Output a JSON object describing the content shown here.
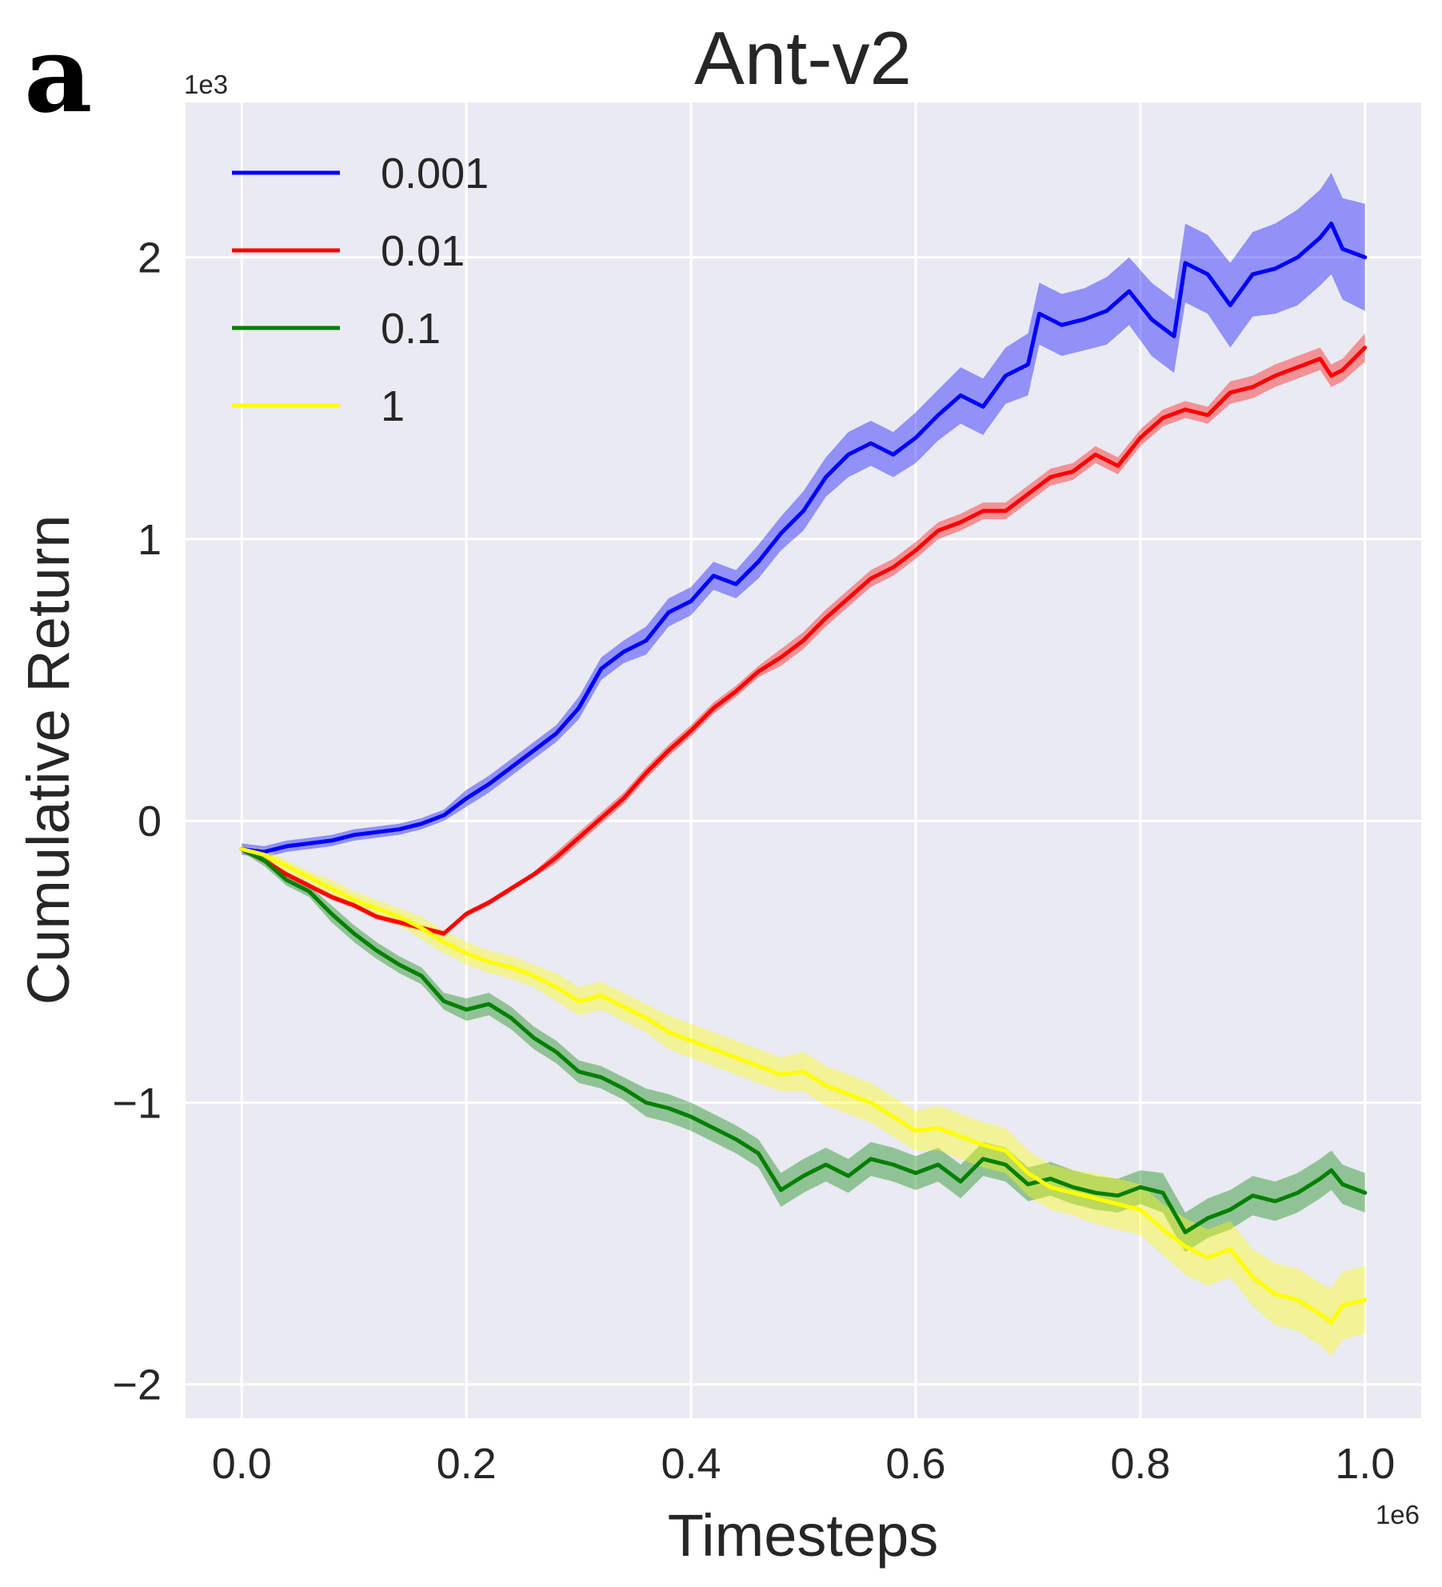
{
  "panel_letter": "a",
  "chart_data": {
    "type": "line",
    "title": "Ant-v2",
    "xlabel": "Timesteps",
    "ylabel": "Cumulative Return",
    "x_offset_label": "1e6",
    "y_offset_label": "1e3",
    "xlim": [
      -0.05,
      1.05
    ],
    "ylim": [
      -2.12,
      2.55
    ],
    "xticks": [
      0.0,
      0.2,
      0.4,
      0.6,
      0.8,
      1.0
    ],
    "xtick_labels": [
      "0.0",
      "0.2",
      "0.4",
      "0.6",
      "0.8",
      "1.0"
    ],
    "yticks": [
      -2,
      -1,
      0,
      1,
      2
    ],
    "ytick_labels": [
      "−2",
      "−1",
      "0",
      "1",
      "2"
    ],
    "grid": true,
    "legend_position": "top-left",
    "series": [
      {
        "name": "0.001",
        "color": "#0000ff",
        "points": [
          [
            0.0,
            -0.1
          ],
          [
            0.02,
            -0.11
          ],
          [
            0.04,
            -0.09
          ],
          [
            0.06,
            -0.08
          ],
          [
            0.08,
            -0.07
          ],
          [
            0.1,
            -0.05
          ],
          [
            0.12,
            -0.04
          ],
          [
            0.14,
            -0.03
          ],
          [
            0.16,
            -0.01
          ],
          [
            0.18,
            0.02
          ],
          [
            0.2,
            0.08
          ],
          [
            0.22,
            0.13
          ],
          [
            0.24,
            0.19
          ],
          [
            0.26,
            0.25
          ],
          [
            0.28,
            0.31
          ],
          [
            0.3,
            0.4
          ],
          [
            0.32,
            0.54
          ],
          [
            0.34,
            0.6
          ],
          [
            0.36,
            0.64
          ],
          [
            0.38,
            0.74
          ],
          [
            0.4,
            0.78
          ],
          [
            0.42,
            0.87
          ],
          [
            0.44,
            0.84
          ],
          [
            0.46,
            0.92
          ],
          [
            0.48,
            1.02
          ],
          [
            0.5,
            1.1
          ],
          [
            0.52,
            1.22
          ],
          [
            0.54,
            1.3
          ],
          [
            0.56,
            1.34
          ],
          [
            0.58,
            1.3
          ],
          [
            0.6,
            1.36
          ],
          [
            0.62,
            1.44
          ],
          [
            0.64,
            1.51
          ],
          [
            0.66,
            1.47
          ],
          [
            0.68,
            1.58
          ],
          [
            0.7,
            1.62
          ],
          [
            0.71,
            1.8
          ],
          [
            0.73,
            1.76
          ],
          [
            0.75,
            1.78
          ],
          [
            0.77,
            1.81
          ],
          [
            0.79,
            1.88
          ],
          [
            0.81,
            1.78
          ],
          [
            0.83,
            1.72
          ],
          [
            0.84,
            1.98
          ],
          [
            0.86,
            1.94
          ],
          [
            0.88,
            1.83
          ],
          [
            0.9,
            1.94
          ],
          [
            0.92,
            1.96
          ],
          [
            0.94,
            2.0
          ],
          [
            0.96,
            2.07
          ],
          [
            0.97,
            2.12
          ],
          [
            0.98,
            2.03
          ],
          [
            1.0,
            2.0
          ]
        ],
        "band": [
          0.02,
          0.02,
          0.02,
          0.02,
          0.02,
          0.02,
          0.02,
          0.02,
          0.02,
          0.02,
          0.03,
          0.03,
          0.03,
          0.03,
          0.03,
          0.04,
          0.04,
          0.04,
          0.05,
          0.05,
          0.05,
          0.05,
          0.05,
          0.06,
          0.06,
          0.07,
          0.07,
          0.08,
          0.08,
          0.08,
          0.09,
          0.09,
          0.1,
          0.1,
          0.1,
          0.11,
          0.11,
          0.11,
          0.11,
          0.12,
          0.12,
          0.13,
          0.13,
          0.14,
          0.14,
          0.15,
          0.15,
          0.16,
          0.17,
          0.17,
          0.18,
          0.18,
          0.19
        ]
      },
      {
        "name": "0.01",
        "color": "#ff0000",
        "points": [
          [
            0.0,
            -0.1
          ],
          [
            0.02,
            -0.14
          ],
          [
            0.04,
            -0.19
          ],
          [
            0.06,
            -0.23
          ],
          [
            0.08,
            -0.27
          ],
          [
            0.1,
            -0.3
          ],
          [
            0.12,
            -0.34
          ],
          [
            0.14,
            -0.36
          ],
          [
            0.16,
            -0.38
          ],
          [
            0.18,
            -0.4
          ],
          [
            0.2,
            -0.33
          ],
          [
            0.22,
            -0.29
          ],
          [
            0.24,
            -0.24
          ],
          [
            0.26,
            -0.19
          ],
          [
            0.28,
            -0.13
          ],
          [
            0.3,
            -0.06
          ],
          [
            0.32,
            0.01
          ],
          [
            0.34,
            0.08
          ],
          [
            0.36,
            0.17
          ],
          [
            0.38,
            0.25
          ],
          [
            0.4,
            0.32
          ],
          [
            0.42,
            0.4
          ],
          [
            0.44,
            0.46
          ],
          [
            0.46,
            0.53
          ],
          [
            0.48,
            0.58
          ],
          [
            0.5,
            0.64
          ],
          [
            0.52,
            0.72
          ],
          [
            0.54,
            0.79
          ],
          [
            0.56,
            0.86
          ],
          [
            0.58,
            0.9
          ],
          [
            0.6,
            0.96
          ],
          [
            0.62,
            1.03
          ],
          [
            0.64,
            1.06
          ],
          [
            0.66,
            1.1
          ],
          [
            0.68,
            1.1
          ],
          [
            0.7,
            1.16
          ],
          [
            0.72,
            1.22
          ],
          [
            0.74,
            1.24
          ],
          [
            0.76,
            1.3
          ],
          [
            0.78,
            1.26
          ],
          [
            0.8,
            1.36
          ],
          [
            0.82,
            1.43
          ],
          [
            0.84,
            1.46
          ],
          [
            0.86,
            1.44
          ],
          [
            0.88,
            1.52
          ],
          [
            0.9,
            1.54
          ],
          [
            0.92,
            1.58
          ],
          [
            0.94,
            1.61
          ],
          [
            0.96,
            1.64
          ],
          [
            0.97,
            1.58
          ],
          [
            0.98,
            1.6
          ],
          [
            1.0,
            1.68
          ]
        ],
        "band": [
          0.01,
          0.01,
          0.01,
          0.01,
          0.01,
          0.01,
          0.01,
          0.01,
          0.01,
          0.01,
          0.01,
          0.01,
          0.01,
          0.01,
          0.02,
          0.02,
          0.02,
          0.02,
          0.02,
          0.02,
          0.02,
          0.02,
          0.02,
          0.02,
          0.03,
          0.03,
          0.03,
          0.03,
          0.03,
          0.03,
          0.03,
          0.03,
          0.03,
          0.03,
          0.03,
          0.03,
          0.03,
          0.03,
          0.03,
          0.03,
          0.03,
          0.03,
          0.03,
          0.03,
          0.04,
          0.04,
          0.04,
          0.04,
          0.04,
          0.04,
          0.04,
          0.05
        ]
      },
      {
        "name": "0.1",
        "color": "#008000",
        "points": [
          [
            0.0,
            -0.1
          ],
          [
            0.02,
            -0.14
          ],
          [
            0.04,
            -0.21
          ],
          [
            0.06,
            -0.25
          ],
          [
            0.08,
            -0.33
          ],
          [
            0.1,
            -0.4
          ],
          [
            0.12,
            -0.46
          ],
          [
            0.14,
            -0.51
          ],
          [
            0.16,
            -0.55
          ],
          [
            0.18,
            -0.64
          ],
          [
            0.2,
            -0.67
          ],
          [
            0.22,
            -0.65
          ],
          [
            0.24,
            -0.7
          ],
          [
            0.26,
            -0.77
          ],
          [
            0.28,
            -0.82
          ],
          [
            0.3,
            -0.89
          ],
          [
            0.32,
            -0.91
          ],
          [
            0.34,
            -0.95
          ],
          [
            0.36,
            -1.0
          ],
          [
            0.38,
            -1.02
          ],
          [
            0.4,
            -1.05
          ],
          [
            0.42,
            -1.09
          ],
          [
            0.44,
            -1.13
          ],
          [
            0.46,
            -1.18
          ],
          [
            0.48,
            -1.31
          ],
          [
            0.5,
            -1.26
          ],
          [
            0.52,
            -1.22
          ],
          [
            0.54,
            -1.26
          ],
          [
            0.56,
            -1.2
          ],
          [
            0.58,
            -1.22
          ],
          [
            0.6,
            -1.25
          ],
          [
            0.62,
            -1.22
          ],
          [
            0.64,
            -1.28
          ],
          [
            0.66,
            -1.2
          ],
          [
            0.68,
            -1.22
          ],
          [
            0.7,
            -1.29
          ],
          [
            0.72,
            -1.27
          ],
          [
            0.74,
            -1.3
          ],
          [
            0.76,
            -1.32
          ],
          [
            0.78,
            -1.33
          ],
          [
            0.8,
            -1.3
          ],
          [
            0.82,
            -1.32
          ],
          [
            0.84,
            -1.46
          ],
          [
            0.86,
            -1.41
          ],
          [
            0.88,
            -1.38
          ],
          [
            0.9,
            -1.33
          ],
          [
            0.92,
            -1.35
          ],
          [
            0.94,
            -1.32
          ],
          [
            0.96,
            -1.27
          ],
          [
            0.97,
            -1.24
          ],
          [
            0.98,
            -1.29
          ],
          [
            1.0,
            -1.32
          ]
        ],
        "band": [
          0.01,
          0.02,
          0.02,
          0.02,
          0.03,
          0.03,
          0.03,
          0.03,
          0.03,
          0.03,
          0.04,
          0.04,
          0.04,
          0.04,
          0.04,
          0.04,
          0.04,
          0.04,
          0.05,
          0.05,
          0.05,
          0.05,
          0.05,
          0.05,
          0.06,
          0.06,
          0.06,
          0.06,
          0.06,
          0.06,
          0.06,
          0.06,
          0.06,
          0.06,
          0.06,
          0.06,
          0.06,
          0.06,
          0.06,
          0.06,
          0.06,
          0.07,
          0.07,
          0.07,
          0.07,
          0.07,
          0.07,
          0.07,
          0.07,
          0.07,
          0.07,
          0.07
        ]
      },
      {
        "name": "1",
        "color": "#ffff00",
        "points": [
          [
            0.0,
            -0.1
          ],
          [
            0.02,
            -0.12
          ],
          [
            0.04,
            -0.16
          ],
          [
            0.06,
            -0.2
          ],
          [
            0.08,
            -0.24
          ],
          [
            0.1,
            -0.28
          ],
          [
            0.12,
            -0.31
          ],
          [
            0.14,
            -0.34
          ],
          [
            0.16,
            -0.38
          ],
          [
            0.18,
            -0.43
          ],
          [
            0.2,
            -0.47
          ],
          [
            0.22,
            -0.5
          ],
          [
            0.24,
            -0.52
          ],
          [
            0.26,
            -0.55
          ],
          [
            0.28,
            -0.59
          ],
          [
            0.3,
            -0.64
          ],
          [
            0.32,
            -0.62
          ],
          [
            0.34,
            -0.66
          ],
          [
            0.36,
            -0.7
          ],
          [
            0.38,
            -0.75
          ],
          [
            0.4,
            -0.78
          ],
          [
            0.42,
            -0.81
          ],
          [
            0.44,
            -0.84
          ],
          [
            0.46,
            -0.87
          ],
          [
            0.48,
            -0.9
          ],
          [
            0.5,
            -0.89
          ],
          [
            0.52,
            -0.94
          ],
          [
            0.54,
            -0.97
          ],
          [
            0.56,
            -1.0
          ],
          [
            0.58,
            -1.05
          ],
          [
            0.6,
            -1.1
          ],
          [
            0.62,
            -1.09
          ],
          [
            0.64,
            -1.12
          ],
          [
            0.66,
            -1.15
          ],
          [
            0.68,
            -1.17
          ],
          [
            0.7,
            -1.25
          ],
          [
            0.72,
            -1.3
          ],
          [
            0.74,
            -1.32
          ],
          [
            0.76,
            -1.34
          ],
          [
            0.78,
            -1.36
          ],
          [
            0.8,
            -1.38
          ],
          [
            0.82,
            -1.45
          ],
          [
            0.84,
            -1.51
          ],
          [
            0.86,
            -1.55
          ],
          [
            0.88,
            -1.52
          ],
          [
            0.9,
            -1.62
          ],
          [
            0.92,
            -1.68
          ],
          [
            0.94,
            -1.7
          ],
          [
            0.96,
            -1.75
          ],
          [
            0.97,
            -1.78
          ],
          [
            0.98,
            -1.72
          ],
          [
            1.0,
            -1.7
          ]
        ],
        "band": [
          0.01,
          0.02,
          0.02,
          0.02,
          0.03,
          0.03,
          0.03,
          0.03,
          0.04,
          0.04,
          0.04,
          0.04,
          0.04,
          0.04,
          0.05,
          0.05,
          0.05,
          0.05,
          0.05,
          0.06,
          0.06,
          0.06,
          0.06,
          0.06,
          0.06,
          0.07,
          0.07,
          0.07,
          0.07,
          0.07,
          0.07,
          0.08,
          0.08,
          0.08,
          0.08,
          0.08,
          0.08,
          0.08,
          0.09,
          0.09,
          0.09,
          0.09,
          0.1,
          0.1,
          0.1,
          0.1,
          0.11,
          0.11,
          0.11,
          0.12,
          0.12,
          0.12
        ]
      }
    ]
  }
}
